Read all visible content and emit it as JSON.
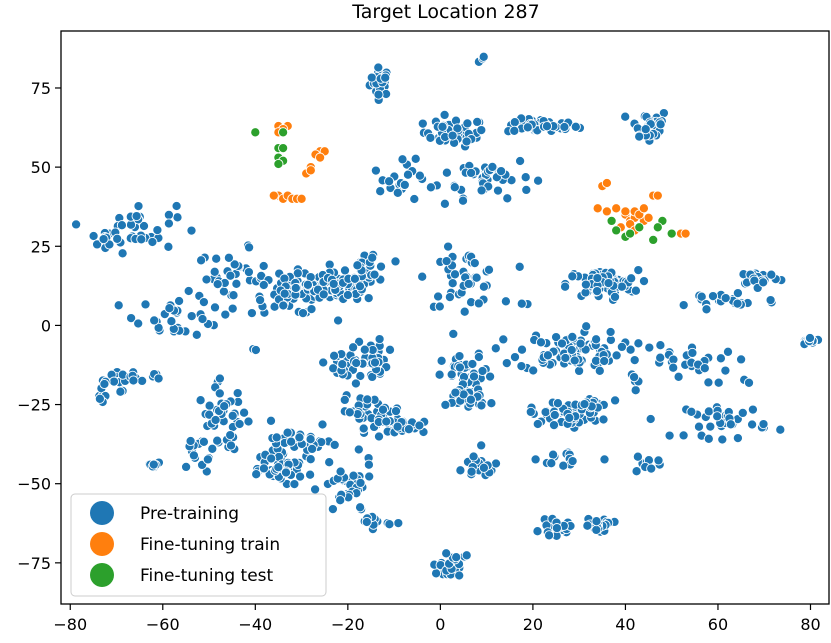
{
  "chart_data": {
    "type": "scatter",
    "title": "Target Location 287",
    "xlabel": "",
    "ylabel": "",
    "xlim": [
      -82,
      84
    ],
    "ylim": [
      -88,
      93
    ],
    "xticks": [
      -80,
      -60,
      -40,
      -20,
      0,
      20,
      40,
      60,
      80
    ],
    "yticks": [
      -75,
      -50,
      -25,
      0,
      25,
      50,
      75
    ],
    "xtick_labels": [
      "−80",
      "−60",
      "−40",
      "−20",
      "0",
      "20",
      "40",
      "60",
      "80"
    ],
    "ytick_labels": [
      "−75",
      "−50",
      "−25",
      "0",
      "25",
      "50",
      "75"
    ],
    "grid": false,
    "legend_position": "lower-left",
    "colors": {
      "pretraining": "#1f77b4",
      "finetune_train": "#ff7f0e",
      "finetune_test": "#2ca02c"
    },
    "series": [
      {
        "name": "Pre-training",
        "color": "#1f77b4",
        "clusters": [
          {
            "cx": -13,
            "cy": 77,
            "rx": 2,
            "ry": 4,
            "n": 28
          },
          {
            "cx": 9,
            "cy": 84,
            "rx": 1,
            "ry": 1,
            "n": 3
          },
          {
            "cx": 3,
            "cy": 61,
            "rx": 6,
            "ry": 4,
            "n": 45
          },
          {
            "cx": 22,
            "cy": 63,
            "rx": 7,
            "ry": 2,
            "n": 45
          },
          {
            "cx": 45,
            "cy": 63,
            "rx": 4,
            "ry": 5,
            "n": 30
          },
          {
            "cx": 10,
            "cy": 47,
            "rx": 9,
            "ry": 6,
            "n": 40
          },
          {
            "cx": -8,
            "cy": 45,
            "rx": 6,
            "ry": 6,
            "n": 22
          },
          {
            "cx": -66,
            "cy": 31,
            "rx": 8,
            "ry": 7,
            "n": 40
          },
          {
            "cx": -72,
            "cy": 26,
            "rx": 2,
            "ry": 2,
            "n": 6
          },
          {
            "cx": -45,
            "cy": 15,
            "rx": 7,
            "ry": 8,
            "n": 35
          },
          {
            "cx": -32,
            "cy": 10,
            "rx": 8,
            "ry": 6,
            "n": 60
          },
          {
            "cx": -22,
            "cy": 12,
            "rx": 8,
            "ry": 4,
            "n": 85
          },
          {
            "cx": -15,
            "cy": 18,
            "rx": 4,
            "ry": 6,
            "n": 25
          },
          {
            "cx": -57,
            "cy": 3,
            "rx": 8,
            "ry": 6,
            "n": 30
          },
          {
            "cx": 5,
            "cy": 15,
            "rx": 7,
            "ry": 8,
            "n": 45
          },
          {
            "cx": 35,
            "cy": 13,
            "rx": 7,
            "ry": 4,
            "n": 75
          },
          {
            "cx": 62,
            "cy": 8,
            "rx": 10,
            "ry": 3,
            "n": 22
          },
          {
            "cx": 69,
            "cy": 15,
            "rx": 4,
            "ry": 2,
            "n": 25
          },
          {
            "cx": 80,
            "cy": -5,
            "rx": 2,
            "ry": 1,
            "n": 14
          },
          {
            "cx": 28,
            "cy": -8,
            "rx": 10,
            "ry": 6,
            "n": 90
          },
          {
            "cx": 52,
            "cy": -12,
            "rx": 10,
            "ry": 6,
            "n": 30
          },
          {
            "cx": -17,
            "cy": -11,
            "rx": 5,
            "ry": 6,
            "n": 45
          },
          {
            "cx": -22,
            "cy": -14,
            "rx": 3,
            "ry": 3,
            "n": 12
          },
          {
            "cx": 6,
            "cy": -16,
            "rx": 5,
            "ry": 6,
            "n": 35
          },
          {
            "cx": 6,
            "cy": -23,
            "rx": 4,
            "ry": 3,
            "n": 35
          },
          {
            "cx": 27,
            "cy": -28,
            "rx": 7,
            "ry": 3,
            "n": 55
          },
          {
            "cx": 32,
            "cy": -25,
            "rx": 4,
            "ry": 2,
            "n": 20
          },
          {
            "cx": -15,
            "cy": -27,
            "rx": 6,
            "ry": 4,
            "n": 35
          },
          {
            "cx": -8,
            "cy": -32,
            "rx": 7,
            "ry": 2,
            "n": 35
          },
          {
            "cx": 62,
            "cy": -30,
            "rx": 8,
            "ry": 5,
            "n": 35
          },
          {
            "cx": -47,
            "cy": -30,
            "rx": 5,
            "ry": 10,
            "n": 45
          },
          {
            "cx": -69,
            "cy": -17,
            "rx": 3,
            "ry": 3,
            "n": 25
          },
          {
            "cx": -73,
            "cy": -21,
            "rx": 1,
            "ry": 4,
            "n": 8
          },
          {
            "cx": -62,
            "cy": -16,
            "rx": 1,
            "ry": 1,
            "n": 4
          },
          {
            "cx": -33,
            "cy": -40,
            "rx": 6,
            "ry": 8,
            "n": 30
          },
          {
            "cx": -28,
            "cy": -37,
            "rx": 4,
            "ry": 4,
            "n": 14
          },
          {
            "cx": -53,
            "cy": -40,
            "rx": 3,
            "ry": 6,
            "n": 12
          },
          {
            "cx": -34,
            "cy": -46,
            "rx": 4,
            "ry": 3,
            "n": 40
          },
          {
            "cx": -20,
            "cy": -52,
            "rx": 5,
            "ry": 8,
            "n": 35
          },
          {
            "cx": -14,
            "cy": -62,
            "rx": 3,
            "ry": 2,
            "n": 12
          },
          {
            "cx": 8,
            "cy": -45,
            "rx": 5,
            "ry": 5,
            "n": 18
          },
          {
            "cx": 28,
            "cy": -42,
            "rx": 6,
            "ry": 3,
            "n": 14
          },
          {
            "cx": 44,
            "cy": -44,
            "rx": 3,
            "ry": 3,
            "n": 10
          },
          {
            "cx": 25,
            "cy": -64,
            "rx": 3,
            "ry": 2,
            "n": 20
          },
          {
            "cx": 34,
            "cy": -63,
            "rx": 3,
            "ry": 2,
            "n": 22
          },
          {
            "cx": 2,
            "cy": -77,
            "rx": 2,
            "ry": 2,
            "n": 30
          },
          {
            "cx": 4,
            "cy": -72,
            "rx": 3,
            "ry": 3,
            "n": 6
          },
          {
            "cx": -62,
            "cy": -44,
            "rx": 1,
            "ry": 1,
            "n": 8
          },
          {
            "cx": -40,
            "cy": -7,
            "rx": 1,
            "ry": 1,
            "n": 2
          },
          {
            "cx": 18,
            "cy": 7,
            "rx": 1,
            "ry": 1,
            "n": 2
          },
          {
            "cx": 42,
            "cy": -18,
            "rx": 3,
            "ry": 3,
            "n": 6
          },
          {
            "cx": 58,
            "cy": 5,
            "rx": 1,
            "ry": 1,
            "n": 2
          },
          {
            "cx": 66,
            "cy": -18,
            "rx": 1,
            "ry": 1,
            "n": 2
          }
        ]
      },
      {
        "name": "Fine-tuning train",
        "color": "#ff7f0e",
        "points": [
          [
            -35,
            63
          ],
          [
            -33,
            63
          ],
          [
            -34,
            62
          ],
          [
            -35,
            61
          ],
          [
            -26,
            55
          ],
          [
            -25,
            55
          ],
          [
            -27,
            54
          ],
          [
            -26,
            53
          ],
          [
            -28,
            50
          ],
          [
            -29,
            48
          ],
          [
            -28,
            49
          ],
          [
            -35,
            41
          ],
          [
            -34,
            40
          ],
          [
            -33,
            41
          ],
          [
            -32,
            40
          ],
          [
            -31,
            40
          ],
          [
            -30,
            40
          ],
          [
            -36,
            41
          ],
          [
            35,
            44
          ],
          [
            36,
            45
          ],
          [
            34,
            37
          ],
          [
            36,
            36
          ],
          [
            38,
            37
          ],
          [
            40,
            35
          ],
          [
            41,
            33
          ],
          [
            42,
            34
          ],
          [
            41,
            32
          ],
          [
            43,
            31
          ],
          [
            40,
            36
          ],
          [
            42,
            36
          ],
          [
            44,
            33
          ],
          [
            42,
            30
          ],
          [
            43,
            35
          ],
          [
            45,
            34
          ],
          [
            46,
            41
          ],
          [
            47,
            41
          ],
          [
            52,
            29
          ],
          [
            53,
            29
          ],
          [
            39,
            31
          ],
          [
            44,
            37
          ]
        ]
      },
      {
        "name": "Fine-tuning test",
        "color": "#2ca02c",
        "points": [
          [
            -40,
            61
          ],
          [
            -34,
            61
          ],
          [
            -35,
            56
          ],
          [
            -34,
            56
          ],
          [
            -35,
            53
          ],
          [
            -34,
            52
          ],
          [
            -35,
            51
          ],
          [
            37,
            33
          ],
          [
            38,
            30
          ],
          [
            40,
            28
          ],
          [
            41,
            29
          ],
          [
            43,
            31
          ],
          [
            46,
            27
          ],
          [
            48,
            33
          ],
          [
            47,
            31
          ],
          [
            50,
            29
          ]
        ]
      }
    ]
  }
}
